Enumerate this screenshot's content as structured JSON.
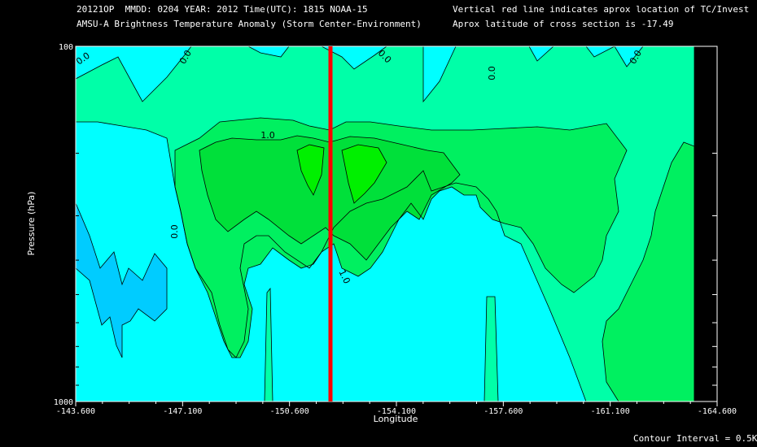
{
  "header": {
    "line1": "20121OP  MMDD: 0204 YEAR: 2012 Time(UTC): 1815 NOAA-15",
    "line2": "AMSU-A Brightness Temperature Anomaly (Storm Center-Environment)",
    "line3": "Vertical red line indicates aprox location of TC/Invest",
    "line4": "Aprox latitude of cross section is -17.49"
  },
  "footer": "Contour Interval = 0.5K",
  "colors": {
    "background": "#000000",
    "level_neg05": "#00ccff",
    "level_0": "#00ffff",
    "level_05": "#00ffa8",
    "level_10": "#00f060",
    "level_15": "#00e03a",
    "level_20": "#00f000",
    "storm_line": "#ff0000"
  },
  "chart_data": {
    "type": "contour",
    "title": "AMSU-A Brightness Temperature Anomaly (Storm Center-Environment)",
    "xlabel": "Longitude",
    "ylabel": "Pressure (hPa)",
    "xlim": [
      -143.6,
      -164.6
    ],
    "ylim": [
      1000,
      100
    ],
    "y_scale": "log",
    "x_ticks": [
      "-143.600",
      "-147.100",
      "-150.600",
      "-154.100",
      "-157.600",
      "-161.100",
      "-164.600"
    ],
    "y_ticks": [
      "100",
      "1000"
    ],
    "storm_longitude": -151.3,
    "contour_interval": 0.5,
    "contour_labels": [
      "0.0",
      "0.0",
      "0.0",
      "0.0",
      "0.0",
      "1.0",
      "1.0"
    ],
    "levels": [
      -0.5,
      0.0,
      0.5,
      1.0,
      1.5,
      2.0
    ]
  }
}
